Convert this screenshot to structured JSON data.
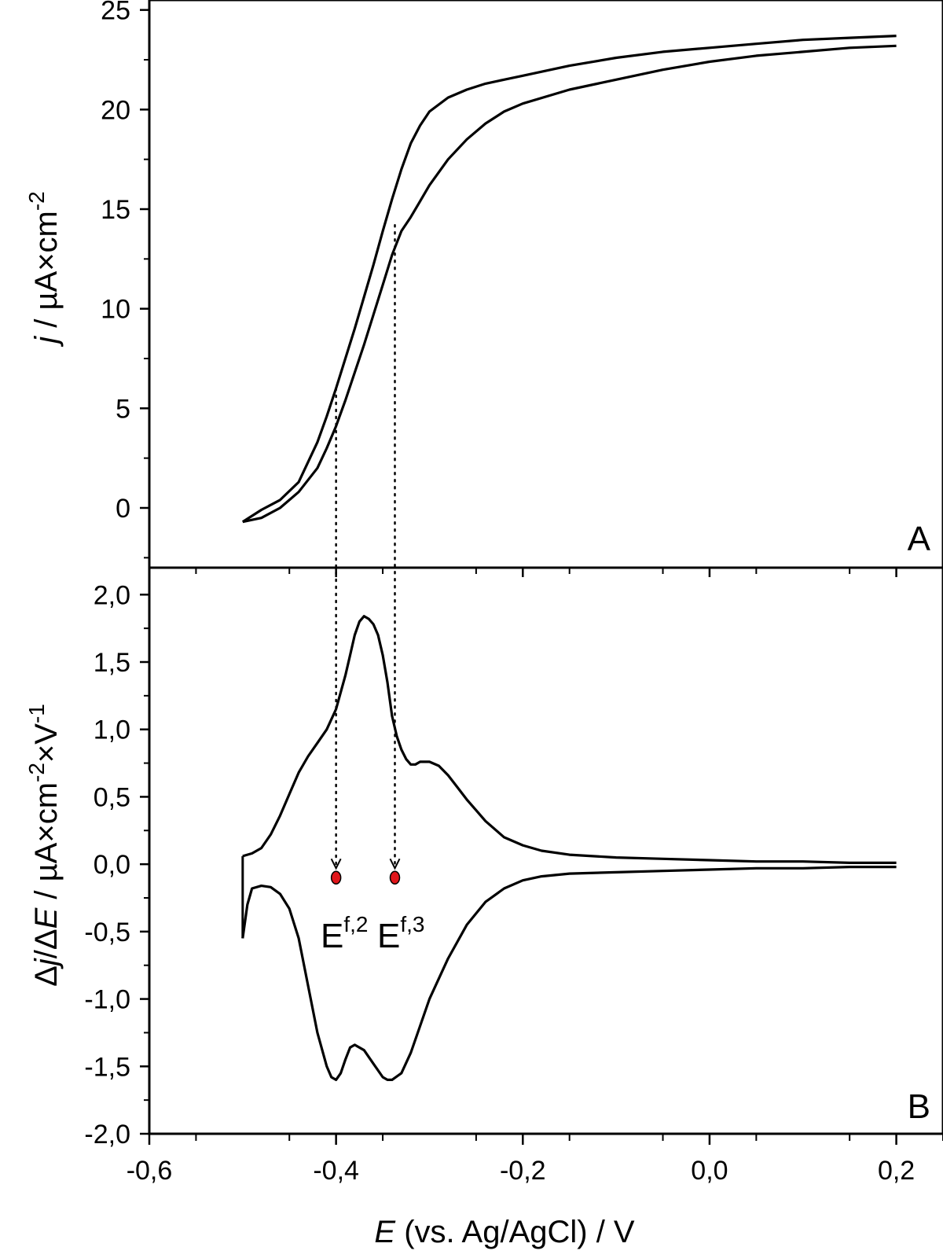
{
  "chart_data": [
    {
      "panel": "A",
      "type": "line",
      "panel_label": "A",
      "ylabel_italic": "j",
      "ylabel_rest": " / µA×cm",
      "ylabel_sup": "-2",
      "ylim": [
        -3,
        25.5
      ],
      "yticks": [
        0,
        5,
        10,
        15,
        20,
        25
      ],
      "ytick_labels": [
        "0",
        "5",
        "10",
        "15",
        "20",
        "25"
      ],
      "xlim": [
        -0.6,
        0.25
      ],
      "series": [
        {
          "x": [
            -0.5,
            -0.49,
            -0.48,
            -0.46,
            -0.44,
            -0.42,
            -0.41,
            -0.4,
            -0.39,
            -0.38,
            -0.37,
            -0.36,
            -0.35,
            -0.34,
            -0.33,
            -0.32,
            -0.31,
            -0.3,
            -0.28,
            -0.26,
            -0.24,
            -0.22,
            -0.2,
            -0.15,
            -0.1,
            -0.05,
            0.0,
            0.05,
            0.1,
            0.15,
            0.2
          ],
          "y": [
            -0.7,
            -0.4,
            -0.1,
            0.4,
            1.3,
            3.3,
            4.6,
            6.0,
            7.5,
            9.0,
            10.6,
            12.2,
            13.9,
            15.5,
            17.0,
            18.3,
            19.2,
            19.9,
            20.6,
            21.0,
            21.3,
            21.5,
            21.7,
            22.2,
            22.6,
            22.9,
            23.1,
            23.3,
            23.5,
            23.6,
            23.7
          ]
        },
        {
          "x": [
            0.2,
            0.15,
            0.1,
            0.05,
            0.0,
            -0.05,
            -0.1,
            -0.15,
            -0.2,
            -0.22,
            -0.24,
            -0.26,
            -0.28,
            -0.3,
            -0.31,
            -0.32,
            -0.33,
            -0.34,
            -0.35,
            -0.36,
            -0.37,
            -0.38,
            -0.39,
            -0.4,
            -0.41,
            -0.42,
            -0.44,
            -0.46,
            -0.48,
            -0.5
          ],
          "y": [
            23.2,
            23.1,
            22.9,
            22.7,
            22.4,
            22.0,
            21.5,
            21.0,
            20.3,
            19.9,
            19.3,
            18.5,
            17.5,
            16.2,
            15.4,
            14.6,
            13.9,
            12.7,
            11.2,
            9.7,
            8.2,
            6.8,
            5.4,
            4.1,
            3.0,
            2.0,
            0.8,
            0.0,
            -0.5,
            -0.7
          ]
        }
      ]
    },
    {
      "panel": "B",
      "type": "line",
      "panel_label": "B",
      "ylabel_pre": "Δ",
      "ylabel_italic1": "j",
      "ylabel_mid": "/Δ",
      "ylabel_italic2": "E",
      "ylabel_rest": " / µA×cm",
      "ylabel_sup1": "-2",
      "ylabel_rest2": "×V",
      "ylabel_sup2": "-1",
      "ylim": [
        -2.0,
        2.2
      ],
      "yticks": [
        -2.0,
        -1.5,
        -1.0,
        -0.5,
        0.0,
        0.5,
        1.0,
        1.5,
        2.0
      ],
      "ytick_labels": [
        "-2,0",
        "-1,5",
        "-1,0",
        "-0,5",
        "0,0",
        "0,5",
        "1,0",
        "1,5",
        "2,0"
      ],
      "xlim": [
        -0.6,
        0.25
      ],
      "xticks": [
        -0.6,
        -0.4,
        -0.2,
        0.0,
        0.2
      ],
      "xtick_labels": [
        "-0,6",
        "-0,4",
        "-0,2",
        "0,0",
        "0,2"
      ],
      "xlabel_italic": "E",
      "xlabel_rest": " (vs. Ag/AgCl) / V",
      "series": [
        {
          "x": [
            -0.5,
            -0.49,
            -0.48,
            -0.47,
            -0.46,
            -0.45,
            -0.44,
            -0.43,
            -0.42,
            -0.41,
            -0.4,
            -0.39,
            -0.385,
            -0.38,
            -0.375,
            -0.37,
            -0.365,
            -0.36,
            -0.355,
            -0.35,
            -0.345,
            -0.34,
            -0.335,
            -0.33,
            -0.325,
            -0.32,
            -0.315,
            -0.31,
            -0.3,
            -0.29,
            -0.28,
            -0.27,
            -0.26,
            -0.25,
            -0.24,
            -0.22,
            -0.2,
            -0.18,
            -0.15,
            -0.1,
            -0.05,
            0.0,
            0.05,
            0.1,
            0.15,
            0.2
          ],
          "y": [
            0.06,
            0.08,
            0.12,
            0.22,
            0.36,
            0.52,
            0.68,
            0.8,
            0.9,
            1.0,
            1.15,
            1.4,
            1.55,
            1.7,
            1.8,
            1.84,
            1.82,
            1.78,
            1.7,
            1.55,
            1.35,
            1.1,
            0.95,
            0.85,
            0.78,
            0.74,
            0.74,
            0.76,
            0.76,
            0.73,
            0.66,
            0.57,
            0.48,
            0.4,
            0.32,
            0.2,
            0.14,
            0.1,
            0.07,
            0.05,
            0.04,
            0.03,
            0.02,
            0.02,
            0.01,
            0.01
          ]
        },
        {
          "x": [
            0.2,
            0.15,
            0.1,
            0.05,
            0.0,
            -0.05,
            -0.1,
            -0.15,
            -0.18,
            -0.2,
            -0.22,
            -0.24,
            -0.26,
            -0.28,
            -0.3,
            -0.31,
            -0.32,
            -0.33,
            -0.34,
            -0.345,
            -0.35,
            -0.36,
            -0.37,
            -0.38,
            -0.385,
            -0.39,
            -0.395,
            -0.4,
            -0.405,
            -0.41,
            -0.42,
            -0.43,
            -0.44,
            -0.45,
            -0.46,
            -0.47,
            -0.48,
            -0.49,
            -0.495,
            -0.5
          ],
          "y": [
            -0.02,
            -0.02,
            -0.03,
            -0.03,
            -0.04,
            -0.05,
            -0.06,
            -0.07,
            -0.09,
            -0.12,
            -0.18,
            -0.28,
            -0.45,
            -0.7,
            -1.0,
            -1.2,
            -1.4,
            -1.55,
            -1.6,
            -1.6,
            -1.58,
            -1.48,
            -1.38,
            -1.34,
            -1.36,
            -1.45,
            -1.55,
            -1.6,
            -1.58,
            -1.5,
            -1.25,
            -0.9,
            -0.55,
            -0.33,
            -0.22,
            -0.17,
            -0.16,
            -0.18,
            -0.3,
            -0.55
          ]
        }
      ]
    }
  ],
  "annotations": {
    "markers": [
      {
        "x": -0.4,
        "y": -0.1,
        "color": "#e0161b"
      },
      {
        "x": -0.337,
        "y": -0.1,
        "color": "#e0161b"
      }
    ],
    "label_1_base": "E",
    "label_1_sup": "f,2",
    "label_2_base": "E",
    "label_2_sup": "f,3"
  }
}
